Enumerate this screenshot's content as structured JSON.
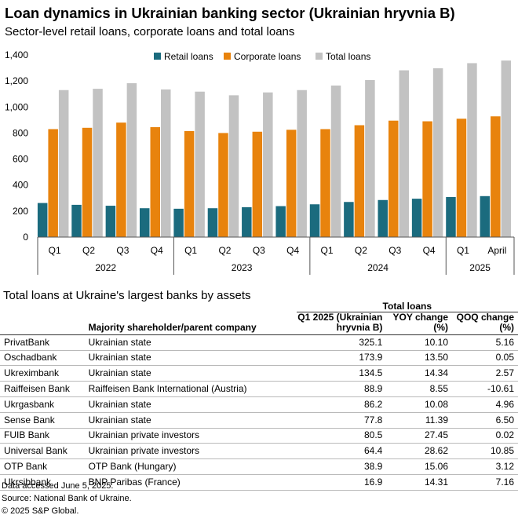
{
  "title": "Loan dynamics in Ukrainian banking sector (Ukrainian hryvnia B)",
  "subtitle": "Sector-level retail loans, corporate loans and total loans",
  "colors": {
    "retail": "#1b6b7e",
    "corporate": "#e8830d",
    "total": "#c2c2c2"
  },
  "chart_data": {
    "type": "bar",
    "categories": [
      "Q1",
      "Q2",
      "Q3",
      "Q4",
      "Q1",
      "Q2",
      "Q3",
      "Q4",
      "Q1",
      "Q2",
      "Q3",
      "Q4",
      "Q1",
      "April"
    ],
    "groups": [
      {
        "label": "2022",
        "span": 4
      },
      {
        "label": "2023",
        "span": 4
      },
      {
        "label": "2024",
        "span": 4
      },
      {
        "label": "2025",
        "span": 2
      }
    ],
    "series": [
      {
        "name": "Retail loans",
        "color_key": "retail",
        "values": [
          262,
          248,
          241,
          222,
          218,
          222,
          230,
          238,
          252,
          270,
          285,
          295,
          308,
          315
        ]
      },
      {
        "name": "Corporate loans",
        "color_key": "corporate",
        "values": [
          830,
          840,
          880,
          845,
          815,
          800,
          810,
          825,
          830,
          860,
          895,
          890,
          910,
          928
        ]
      },
      {
        "name": "Total loans",
        "color_key": "total",
        "values": [
          1130,
          1140,
          1183,
          1135,
          1118,
          1090,
          1112,
          1130,
          1165,
          1207,
          1282,
          1298,
          1337,
          1357
        ]
      }
    ],
    "ylim": [
      0,
      1400
    ],
    "yticks": [
      0,
      200,
      400,
      600,
      800,
      1000,
      1200,
      1400
    ],
    "ytick_labels": [
      "0",
      "200",
      "400",
      "600",
      "800",
      "1,000",
      "1,200",
      "1,400"
    ],
    "legend_position": "top",
    "grid": false
  },
  "table": {
    "title": "Total loans at Ukraine's largest banks by assets",
    "group_header": "Total loans",
    "headers": {
      "bank": "",
      "shareholder": "Majority shareholder/parent company",
      "q1_line1": "Q1 2025 (Ukrainian",
      "q1_line2": "hryvnia B)",
      "yoy_line1": "YOY change",
      "yoy_line2": "(%)",
      "qoq_line1": "QOQ change",
      "qoq_line2": "(%)"
    },
    "rows": [
      {
        "bank": "PrivatBank",
        "owner": "Ukrainian state",
        "q1": "325.1",
        "yoy": "10.10",
        "qoq": "5.16"
      },
      {
        "bank": "Oschadbank",
        "owner": "Ukrainian state",
        "q1": "173.9",
        "yoy": "13.50",
        "qoq": "0.05"
      },
      {
        "bank": "Ukreximbank",
        "owner": "Ukrainian state",
        "q1": "134.5",
        "yoy": "14.34",
        "qoq": "2.57"
      },
      {
        "bank": "Raiffeisen Bank",
        "owner": "Raiffeisen Bank International (Austria)",
        "q1": "88.9",
        "yoy": "8.55",
        "qoq": "-10.61"
      },
      {
        "bank": "Ukrgasbank",
        "owner": "Ukrainian state",
        "q1": "86.2",
        "yoy": "10.08",
        "qoq": "4.96"
      },
      {
        "bank": "Sense Bank",
        "owner": "Ukrainian state",
        "q1": "77.8",
        "yoy": "11.39",
        "qoq": "6.50"
      },
      {
        "bank": "FUIB Bank",
        "owner": "Ukrainian private investors",
        "q1": "80.5",
        "yoy": "27.45",
        "qoq": "0.02"
      },
      {
        "bank": "Universal Bank",
        "owner": "Ukrainian private investors",
        "q1": "64.4",
        "yoy": "28.62",
        "qoq": "10.85"
      },
      {
        "bank": "OTP Bank",
        "owner": "OTP Bank (Hungary)",
        "q1": "38.9",
        "yoy": "15.06",
        "qoq": "3.12"
      },
      {
        "bank": "Ukrsibbank",
        "owner": "BNP Paribas (France)",
        "q1": "16.9",
        "yoy": "14.31",
        "qoq": "7.16"
      }
    ]
  },
  "footnotes": [
    "Data accessed June 5, 2025.",
    "Source: National Bank of Ukraine.",
    "© 2025 S&P Global."
  ]
}
